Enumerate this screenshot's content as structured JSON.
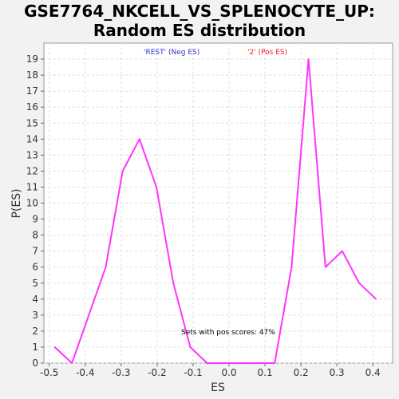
{
  "chart_data": {
    "type": "line",
    "title_line1": "GSE7764_NKCELL_VS_SPLENOCYTE_UP:",
    "title_line2": "Random ES distribution",
    "xlabel": "ES",
    "ylabel": "P(ES)",
    "xlim": [
      -0.515,
      0.455
    ],
    "ylim": [
      0,
      20
    ],
    "xticks": [
      -0.5,
      -0.4,
      -0.3,
      -0.2,
      -0.1,
      0.0,
      0.1,
      0.2,
      0.3,
      0.4
    ],
    "xtick_labels": [
      "-0.5",
      "-0.4",
      "-0.3",
      "-0.2",
      "-0.1",
      "0.0",
      "0.1",
      "0.2",
      "0.3",
      "0.4"
    ],
    "yticks": [
      0,
      1,
      2,
      3,
      4,
      5,
      6,
      7,
      8,
      9,
      10,
      11,
      12,
      13,
      14,
      15,
      16,
      17,
      18,
      19
    ],
    "grid": true,
    "legend": [
      {
        "label": "'REST' (Neg ES)",
        "color": "#3333cc"
      },
      {
        "label": "'2' (Pos ES)",
        "color": "#ee2222"
      }
    ],
    "annotation": "Sets with pos scores: 47%",
    "series": [
      {
        "color": "#ff33ff",
        "x": [
          -0.485,
          -0.437,
          -0.39,
          -0.343,
          -0.296,
          -0.249,
          -0.202,
          -0.155,
          -0.108,
          -0.061,
          -0.014,
          0.033,
          0.08,
          0.127,
          0.174,
          0.221,
          0.268,
          0.315,
          0.362,
          0.409
        ],
        "y": [
          1,
          0,
          3,
          6,
          12,
          14,
          11,
          5,
          1,
          0,
          0,
          0,
          0,
          0,
          6,
          19,
          6,
          7,
          5,
          4
        ]
      }
    ]
  }
}
